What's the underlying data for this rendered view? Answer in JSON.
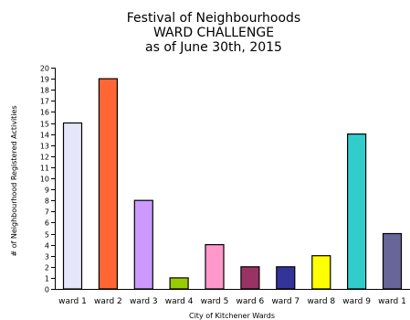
{
  "chart_data": {
    "type": "bar",
    "title": [
      "Festival of Neighbourhoods",
      "WARD CHALLENGE",
      "as of June 30th, 2015"
    ],
    "xlabel": "City of Kitchener Wards",
    "ylabel": "# of Neighbourhood Registered Activities",
    "categories": [
      "ward 1",
      "ward 2",
      "ward 3",
      "ward 4",
      "ward 5",
      "ward 6",
      "ward 7",
      "ward 8",
      "ward 9",
      "ward 1"
    ],
    "values": [
      15,
      19,
      8,
      1,
      4,
      2,
      2,
      3,
      14,
      5
    ],
    "colors": [
      "#e6e6fa",
      "#ff6633",
      "#cc99ff",
      "#99cc00",
      "#ff99cc",
      "#993366",
      "#333399",
      "#ffff00",
      "#33cccc",
      "#666699"
    ],
    "ylim": [
      0,
      20
    ],
    "yticks": [
      0,
      1,
      2,
      3,
      4,
      5,
      6,
      7,
      8,
      9,
      10,
      11,
      12,
      13,
      14,
      15,
      16,
      17,
      18,
      19,
      20
    ],
    "grid": false
  }
}
